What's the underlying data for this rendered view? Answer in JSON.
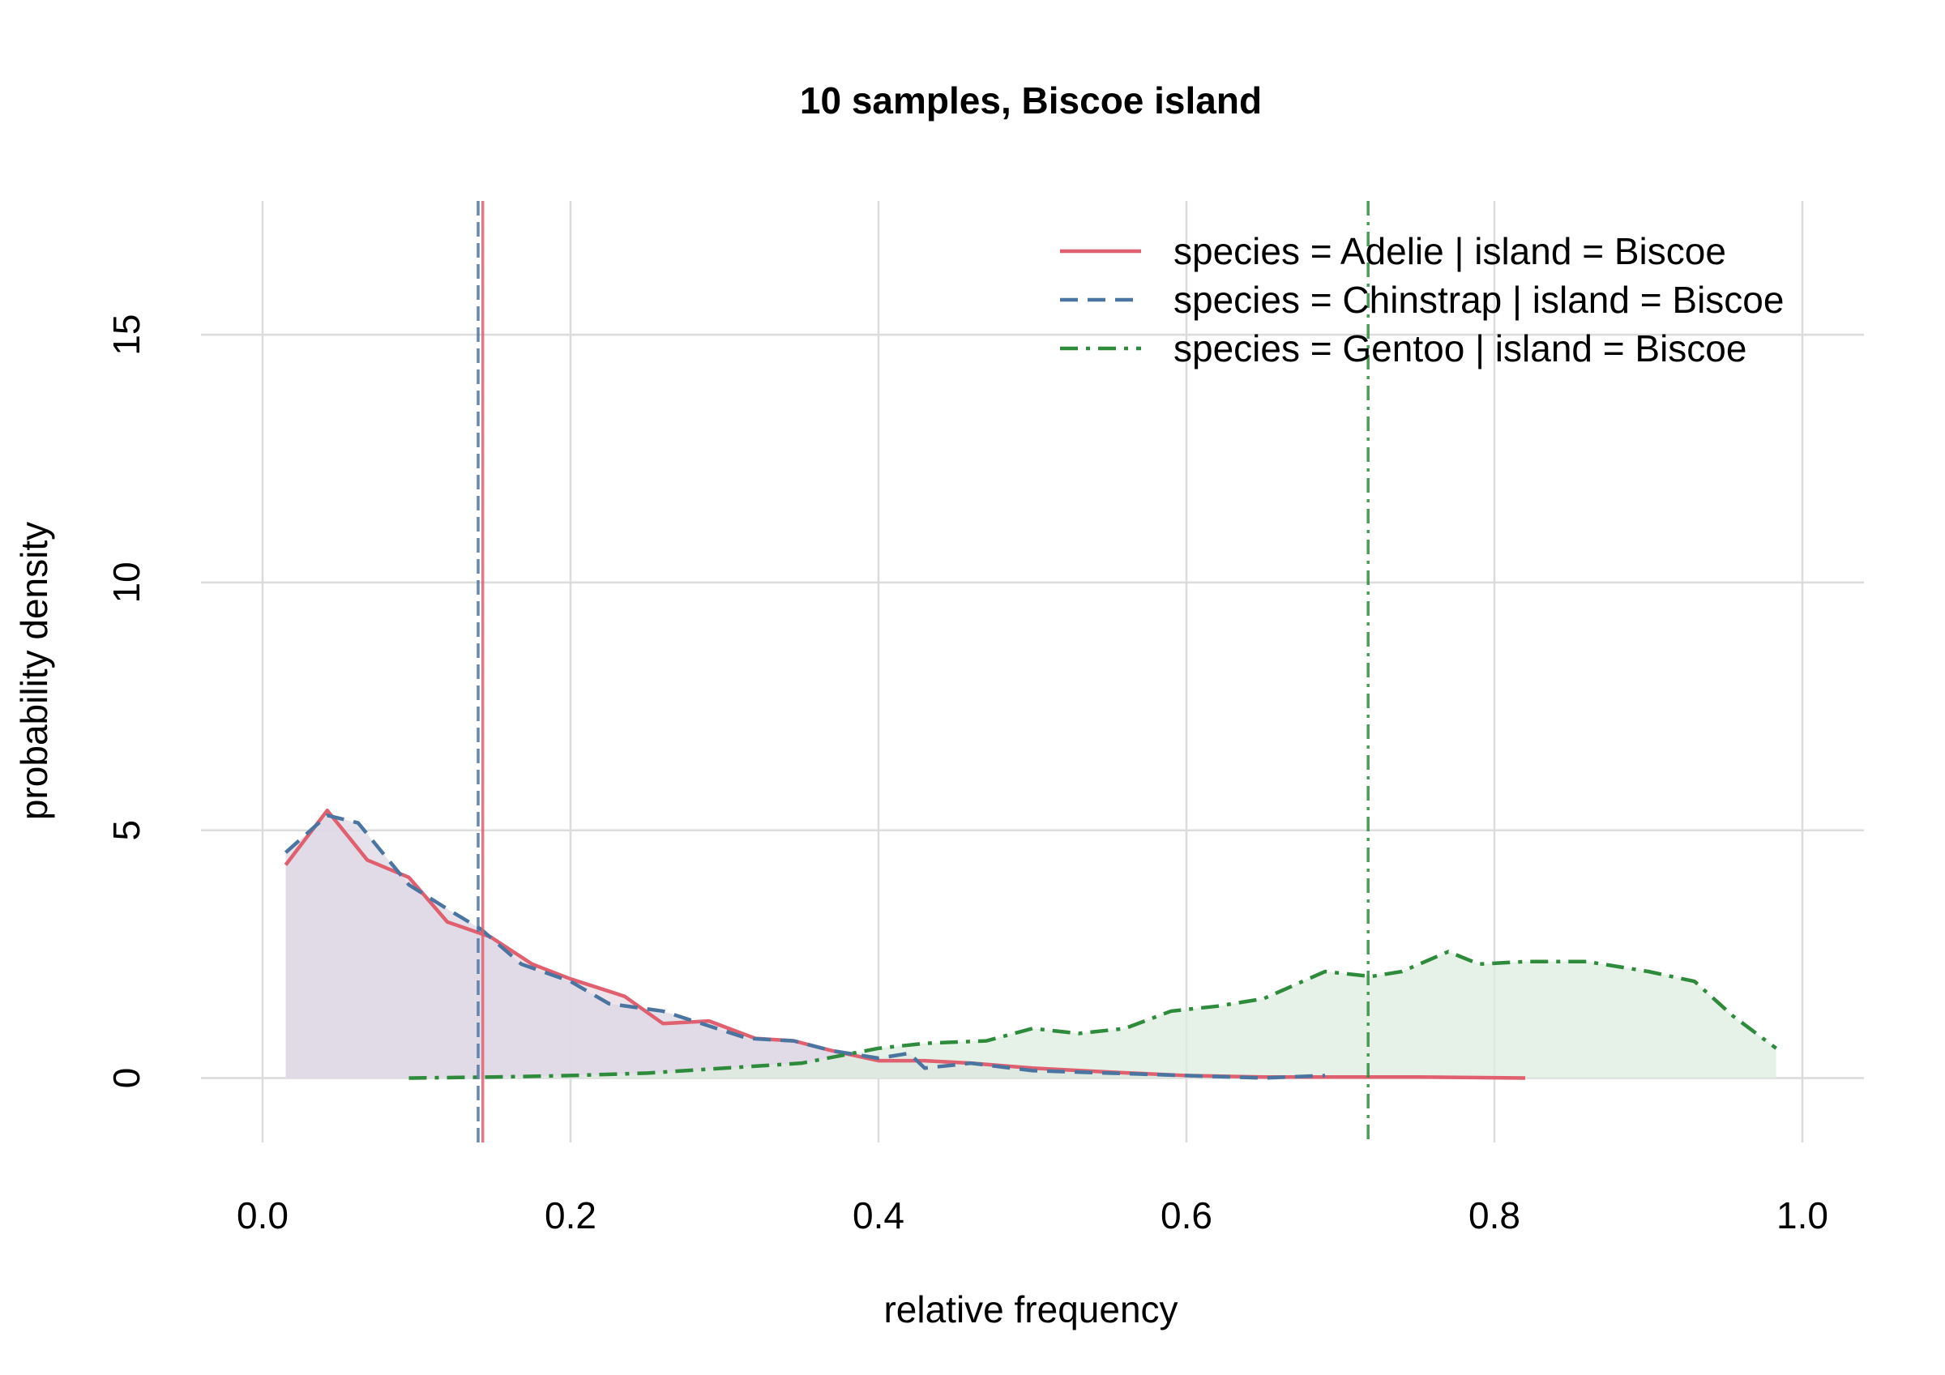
{
  "chart_data": {
    "type": "line",
    "title": "10 samples, Biscoe island",
    "xlabel": "relative frequency",
    "ylabel": "probability density",
    "xlim": [
      -0.04,
      1.04
    ],
    "ylim": [
      -1.3,
      17.7
    ],
    "x_ticks": [
      {
        "value": 0.0,
        "label": "0.0"
      },
      {
        "value": 0.2,
        "label": "0.2"
      },
      {
        "value": 0.4,
        "label": "0.4"
      },
      {
        "value": 0.6,
        "label": "0.6"
      },
      {
        "value": 0.8,
        "label": "0.8"
      },
      {
        "value": 1.0,
        "label": "1.0"
      }
    ],
    "y_ticks": [
      {
        "value": 0,
        "label": "0"
      },
      {
        "value": 5,
        "label": "5"
      },
      {
        "value": 10,
        "label": "10"
      },
      {
        "value": 15,
        "label": "15"
      }
    ],
    "grid": true,
    "legend_position": "top-right",
    "series": [
      {
        "name": "species = Adelie | island = Biscoe",
        "color": "#e06070",
        "fill": "#e8d8e4",
        "dash": "solid",
        "vline": 0.143,
        "points": [
          [
            0.015,
            4.3
          ],
          [
            0.042,
            5.4
          ],
          [
            0.068,
            4.4
          ],
          [
            0.095,
            4.05
          ],
          [
            0.12,
            3.15
          ],
          [
            0.148,
            2.85
          ],
          [
            0.175,
            2.3
          ],
          [
            0.2,
            2.0
          ],
          [
            0.235,
            1.65
          ],
          [
            0.26,
            1.1
          ],
          [
            0.29,
            1.15
          ],
          [
            0.32,
            0.8
          ],
          [
            0.345,
            0.75
          ],
          [
            0.37,
            0.55
          ],
          [
            0.4,
            0.35
          ],
          [
            0.43,
            0.35
          ],
          [
            0.46,
            0.3
          ],
          [
            0.5,
            0.2
          ],
          [
            0.55,
            0.12
          ],
          [
            0.6,
            0.05
          ],
          [
            0.65,
            0.02
          ],
          [
            0.7,
            0.02
          ],
          [
            0.75,
            0.02
          ],
          [
            0.82,
            0.0
          ]
        ]
      },
      {
        "name": "species = Chinstrap | island = Biscoe",
        "color": "#4a75a0",
        "fill": "#dcd8e6",
        "dash": "dashed",
        "vline": 0.14,
        "points": [
          [
            0.015,
            4.55
          ],
          [
            0.042,
            5.3
          ],
          [
            0.062,
            5.15
          ],
          [
            0.095,
            3.9
          ],
          [
            0.118,
            3.45
          ],
          [
            0.142,
            3.0
          ],
          [
            0.168,
            2.3
          ],
          [
            0.2,
            1.95
          ],
          [
            0.225,
            1.5
          ],
          [
            0.26,
            1.35
          ],
          [
            0.29,
            1.05
          ],
          [
            0.315,
            0.8
          ],
          [
            0.345,
            0.75
          ],
          [
            0.37,
            0.55
          ],
          [
            0.4,
            0.4
          ],
          [
            0.42,
            0.5
          ],
          [
            0.43,
            0.2
          ],
          [
            0.46,
            0.3
          ],
          [
            0.5,
            0.15
          ],
          [
            0.55,
            0.1
          ],
          [
            0.6,
            0.05
          ],
          [
            0.65,
            0.0
          ],
          [
            0.69,
            0.05
          ]
        ]
      },
      {
        "name": "species = Gentoo | island = Biscoe",
        "color": "#2e8b3c",
        "fill": "#ddeedf",
        "dash": "dashdot",
        "vline": 0.718,
        "points": [
          [
            0.095,
            0.0
          ],
          [
            0.15,
            0.02
          ],
          [
            0.2,
            0.05
          ],
          [
            0.25,
            0.1
          ],
          [
            0.3,
            0.2
          ],
          [
            0.35,
            0.3
          ],
          [
            0.4,
            0.6
          ],
          [
            0.43,
            0.7
          ],
          [
            0.47,
            0.75
          ],
          [
            0.5,
            1.0
          ],
          [
            0.53,
            0.9
          ],
          [
            0.56,
            1.0
          ],
          [
            0.59,
            1.35
          ],
          [
            0.62,
            1.45
          ],
          [
            0.65,
            1.6
          ],
          [
            0.69,
            2.15
          ],
          [
            0.72,
            2.05
          ],
          [
            0.74,
            2.15
          ],
          [
            0.77,
            2.55
          ],
          [
            0.79,
            2.3
          ],
          [
            0.82,
            2.35
          ],
          [
            0.86,
            2.35
          ],
          [
            0.9,
            2.15
          ],
          [
            0.93,
            1.95
          ],
          [
            0.955,
            1.25
          ],
          [
            0.983,
            0.6
          ]
        ]
      }
    ]
  }
}
